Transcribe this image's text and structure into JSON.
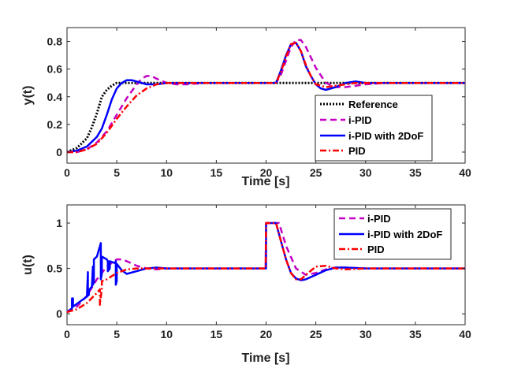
{
  "chart_data": [
    {
      "type": "line",
      "ylabel": "y(t)",
      "xlabel": "Time [s]",
      "xlim": [
        0,
        40
      ],
      "ylim": [
        -0.08,
        0.9
      ],
      "xticks": [
        "0",
        "5",
        "10",
        "15",
        "20",
        "25",
        "30",
        "35",
        "40"
      ],
      "yticks": [
        "0",
        "0.2",
        "0.4",
        "0.6",
        "0.8"
      ],
      "legend_position": "inside-right",
      "series": [
        {
          "name": "Reference",
          "color": "#000000",
          "style": "dotted",
          "x": [
            0,
            1,
            2,
            2.5,
            3,
            3.5,
            4,
            4.5,
            5,
            5.5,
            6,
            7,
            8,
            10,
            21,
            40
          ],
          "y": [
            0,
            0.03,
            0.1,
            0.18,
            0.28,
            0.4,
            0.45,
            0.48,
            0.5,
            0.5,
            0.5,
            0.5,
            0.5,
            0.5,
            0.5,
            0.5
          ]
        },
        {
          "name": "i-PID",
          "color": "#C300C3",
          "style": "dashed",
          "x": [
            0,
            1,
            2,
            3,
            4,
            5,
            6,
            7,
            7.5,
            8,
            8.5,
            9,
            10,
            11,
            12,
            14,
            16,
            21,
            21.5,
            22,
            22.5,
            23,
            23.5,
            24,
            25,
            26,
            27,
            28,
            30,
            32,
            34,
            40
          ],
          "y": [
            0,
            0,
            0.02,
            0.07,
            0.15,
            0.27,
            0.39,
            0.49,
            0.53,
            0.55,
            0.55,
            0.53,
            0.5,
            0.49,
            0.49,
            0.5,
            0.5,
            0.5,
            0.56,
            0.66,
            0.76,
            0.81,
            0.81,
            0.76,
            0.61,
            0.5,
            0.47,
            0.47,
            0.49,
            0.5,
            0.5,
            0.5
          ]
        },
        {
          "name": "i-PID with 2DoF",
          "color": "#0000FF",
          "style": "solid",
          "x": [
            0,
            1,
            2,
            3,
            3.5,
            4,
            4.5,
            5,
            5.5,
            6,
            6.5,
            7,
            8,
            9,
            10,
            21,
            21.5,
            22,
            22.5,
            23,
            23.5,
            24,
            24.5,
            25,
            25.5,
            26,
            27,
            28,
            29,
            30,
            35,
            40
          ],
          "y": [
            0,
            0.01,
            0.04,
            0.11,
            0.17,
            0.27,
            0.38,
            0.46,
            0.5,
            0.52,
            0.52,
            0.51,
            0.49,
            0.49,
            0.5,
            0.5,
            0.59,
            0.7,
            0.78,
            0.79,
            0.73,
            0.62,
            0.55,
            0.49,
            0.46,
            0.45,
            0.47,
            0.5,
            0.51,
            0.5,
            0.5,
            0.5
          ]
        },
        {
          "name": "PID",
          "color": "#FF0000",
          "style": "dashdot",
          "x": [
            0,
            1,
            2,
            3,
            4,
            5,
            6,
            7,
            8,
            9,
            10,
            11,
            12,
            14,
            21,
            21.5,
            22,
            22.5,
            23,
            23.5,
            24,
            24.5,
            25,
            26,
            27,
            28,
            29,
            30,
            35,
            40
          ],
          "y": [
            0,
            0,
            0.02,
            0.06,
            0.14,
            0.24,
            0.33,
            0.41,
            0.46,
            0.49,
            0.5,
            0.5,
            0.5,
            0.5,
            0.5,
            0.58,
            0.69,
            0.78,
            0.79,
            0.73,
            0.63,
            0.55,
            0.49,
            0.47,
            0.48,
            0.49,
            0.5,
            0.5,
            0.5,
            0.5
          ]
        }
      ]
    },
    {
      "type": "line",
      "ylabel": "u(t)",
      "xlabel": "Time [s]",
      "xlim": [
        0,
        40
      ],
      "ylim": [
        -0.12,
        1.2
      ],
      "xticks": [
        "0",
        "5",
        "10",
        "15",
        "20",
        "25",
        "30",
        "35",
        "40"
      ],
      "yticks": [
        "0",
        "0.5",
        "1"
      ],
      "legend_position": "top-right",
      "series": [
        {
          "name": "i-PID",
          "color": "#C300C3",
          "style": "dashed",
          "x": [
            0,
            1,
            2,
            3,
            4,
            5,
            5.5,
            6,
            7,
            8,
            9,
            10,
            15,
            19.95,
            20,
            21,
            21.3,
            22,
            23,
            24,
            25,
            26,
            27,
            28,
            30,
            35,
            40
          ],
          "y": [
            0.02,
            0.08,
            0.2,
            0.38,
            0.52,
            0.6,
            0.6,
            0.58,
            0.53,
            0.5,
            0.49,
            0.5,
            0.5,
            0.5,
            1.0,
            1.0,
            1.0,
            0.75,
            0.5,
            0.43,
            0.45,
            0.49,
            0.51,
            0.51,
            0.5,
            0.5,
            0.5
          ]
        },
        {
          "name": "i-PID with 2DoF",
          "color": "#0000FF",
          "style": "solid",
          "x": [
            0,
            0.5,
            0.5,
            0.6,
            0.6,
            1,
            1.5,
            2,
            2.1,
            2.1,
            2.2,
            2.2,
            2.5,
            2.6,
            2.6,
            2.7,
            2.7,
            3,
            3.4,
            3.4,
            3.5,
            3.5,
            4,
            4.1,
            4.1,
            4.3,
            4.3,
            4.8,
            4.9,
            4.9,
            5,
            5,
            5.5,
            6,
            7,
            8,
            9,
            10,
            15,
            20,
            20,
            21,
            21.5,
            22,
            22.5,
            23,
            23.5,
            24,
            25,
            26,
            27,
            28,
            30,
            35,
            40
          ],
          "y": [
            0.02,
            0.06,
            0.17,
            0.17,
            0.08,
            0.11,
            0.15,
            0.19,
            0.46,
            0.2,
            0.21,
            0.26,
            0.3,
            0.52,
            0.32,
            0.35,
            0.6,
            0.63,
            0.78,
            0.38,
            0.44,
            0.63,
            0.6,
            0.58,
            0.47,
            0.5,
            0.58,
            0.56,
            0.58,
            0.32,
            0.36,
            0.55,
            0.48,
            0.44,
            0.47,
            0.5,
            0.51,
            0.5,
            0.5,
            0.5,
            1.0,
            1.0,
            0.8,
            0.6,
            0.45,
            0.39,
            0.37,
            0.38,
            0.43,
            0.48,
            0.51,
            0.51,
            0.5,
            0.5,
            0.5
          ]
        },
        {
          "name": "PID",
          "color": "#FF0000",
          "style": "dashdot",
          "x": [
            0,
            1,
            2,
            3,
            3.3,
            3.3,
            3.5,
            3.5,
            4,
            5,
            6,
            7,
            8,
            9,
            10,
            15,
            19.95,
            20,
            21,
            21.5,
            22,
            22.5,
            23,
            23.5,
            24,
            25,
            26,
            27,
            28,
            30,
            35,
            40
          ],
          "y": [
            0.02,
            0.05,
            0.12,
            0.23,
            0.27,
            0.1,
            0.28,
            0.36,
            0.38,
            0.45,
            0.49,
            0.5,
            0.5,
            0.5,
            0.5,
            0.5,
            0.5,
            1.0,
            1.0,
            0.8,
            0.6,
            0.45,
            0.38,
            0.38,
            0.43,
            0.52,
            0.53,
            0.5,
            0.49,
            0.5,
            0.5,
            0.5
          ]
        }
      ]
    }
  ]
}
